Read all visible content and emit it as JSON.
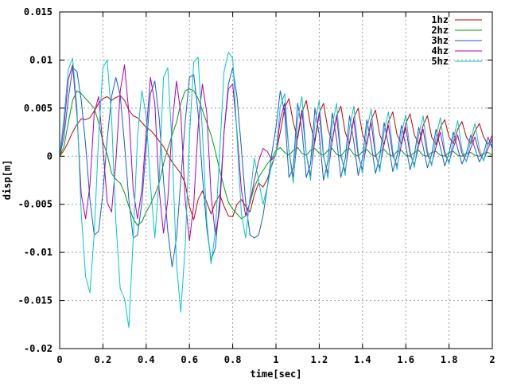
{
  "chart_data": {
    "type": "line",
    "title": "",
    "xlabel": "time[sec]",
    "ylabel": "disp[m]",
    "xlim": [
      0,
      2
    ],
    "ylim": [
      -0.02,
      0.015
    ],
    "x_ticks": [
      0,
      0.2,
      0.4,
      0.6,
      0.8,
      1,
      1.2,
      1.4,
      1.6,
      1.8,
      2
    ],
    "x_tick_labels": [
      "0",
      "0.2",
      "0.4",
      "0.6",
      "0.8",
      "1",
      "1.2",
      "1.4",
      "1.6",
      "1.8",
      "2"
    ],
    "y_ticks": [
      -0.02,
      -0.015,
      -0.01,
      -0.005,
      0,
      0.005,
      0.01,
      0.015
    ],
    "y_tick_labels": [
      "-0.02",
      "-0.015",
      "-0.01",
      "-0.005",
      "0",
      "0.005",
      "0.01",
      "0.015"
    ],
    "grid": true,
    "legend_position": "top-right",
    "x": [
      0,
      0.02,
      0.04,
      0.06,
      0.08,
      0.1,
      0.12,
      0.14,
      0.16,
      0.18,
      0.2,
      0.22,
      0.24,
      0.26,
      0.28,
      0.3,
      0.32,
      0.34,
      0.36,
      0.38,
      0.4,
      0.42,
      0.44,
      0.46,
      0.48,
      0.5,
      0.52,
      0.54,
      0.56,
      0.58,
      0.6,
      0.62,
      0.64,
      0.66,
      0.68,
      0.7,
      0.72,
      0.74,
      0.76,
      0.78,
      0.8,
      0.82,
      0.84,
      0.86,
      0.88,
      0.9,
      0.92,
      0.94,
      0.96,
      0.98,
      1,
      1.02,
      1.04,
      1.06,
      1.08,
      1.1,
      1.12,
      1.14,
      1.16,
      1.18,
      1.2,
      1.22,
      1.24,
      1.26,
      1.28,
      1.3,
      1.32,
      1.34,
      1.36,
      1.38,
      1.4,
      1.42,
      1.44,
      1.46,
      1.48,
      1.5,
      1.52,
      1.54,
      1.56,
      1.58,
      1.6,
      1.62,
      1.64,
      1.66,
      1.68,
      1.7,
      1.72,
      1.74,
      1.76,
      1.78,
      1.8,
      1.82,
      1.84,
      1.86,
      1.88,
      1.9,
      1.92,
      1.94,
      1.96,
      1.98,
      2
    ],
    "series": [
      {
        "name": "1hz",
        "color": "#cc0000",
        "values": [
          0,
          0.0006,
          0.0015,
          0.0025,
          0.0033,
          0.0039,
          0.0038,
          0.004,
          0.0047,
          0.0055,
          0.006,
          0.0062,
          0.0058,
          0.0061,
          0.0063,
          0.0058,
          0.0048,
          0.0042,
          0.004,
          0.0035,
          0.003,
          0.0027,
          0.0022,
          0.0016,
          0.001,
          0.0002,
          -0.0006,
          -0.0012,
          -0.0018,
          -0.0028,
          -0.0052,
          -0.0066,
          -0.0045,
          -0.0036,
          -0.0048,
          -0.006,
          -0.0048,
          -0.004,
          -0.0052,
          -0.0062,
          -0.0063,
          -0.005,
          -0.0045,
          -0.0052,
          -0.0058,
          -0.004,
          -0.0028,
          -0.0032,
          -0.0024,
          -0.001,
          0.0003,
          0.0025,
          0.005,
          0.006,
          0.0035,
          0.0018,
          0.0045,
          0.0058,
          0.0032,
          0.0015,
          0.0045,
          0.0055,
          0.0028,
          0.0015,
          0.0042,
          0.0052,
          0.0025,
          0.0013,
          0.004,
          0.005,
          0.0023,
          0.0012,
          0.0038,
          0.0048,
          0.0022,
          0.0012,
          0.0036,
          0.0046,
          0.0022,
          0.0013,
          0.0034,
          0.0044,
          0.0022,
          0.0013,
          0.0032,
          0.0042,
          0.002,
          0.0012,
          0.003,
          0.0038,
          0.002,
          0.0013,
          0.0028,
          0.0036,
          0.002,
          0.0013,
          0.0026,
          0.0034,
          0.002,
          0.0012,
          0.0022
        ]
      },
      {
        "name": "2hz",
        "color": "#00a000",
        "values": [
          0,
          0.001,
          0.0035,
          0.0058,
          0.0068,
          0.0065,
          0.006,
          0.0055,
          0.005,
          0.0035,
          0.0015,
          0.0002,
          -0.0018,
          -0.0024,
          -0.0028,
          -0.0038,
          -0.0052,
          -0.0065,
          -0.0072,
          -0.0068,
          -0.0058,
          -0.005,
          -0.004,
          -0.0028,
          -0.0008,
          0.0008,
          0.0022,
          0.0035,
          0.0055,
          0.0068,
          0.007,
          0.0068,
          0.006,
          0.0048,
          0.0035,
          0.0022,
          0.0005,
          -0.0015,
          -0.0032,
          -0.0048,
          -0.0055,
          -0.006,
          -0.0065,
          -0.0062,
          -0.0048,
          -0.0032,
          -0.0022,
          -0.0015,
          -0.0008,
          -0.0002,
          0.0006,
          0.0009,
          0.0004,
          0.0001,
          0.0006,
          0.0009,
          0.0003,
          0.0001,
          0.0006,
          0.0008,
          0.0003,
          0.0001,
          0.0006,
          0.0008,
          0.0002,
          0,
          0.0006,
          0.0008,
          0.0002,
          0,
          0.0005,
          0.0007,
          0.0002,
          0,
          0.0005,
          0.0007,
          0.0002,
          0,
          0.0005,
          0.0006,
          0.0001,
          0,
          0.0004,
          0.0006,
          0.0001,
          0,
          0.0004,
          0.0005,
          0.0001,
          0,
          0.0004,
          0.0005,
          0.0001,
          0,
          0.0003,
          0.0004,
          0.0001,
          0,
          0.0003,
          0.0004,
          0.0001
        ]
      },
      {
        "name": "3hz",
        "color": "#1060d0",
        "values": [
          0,
          0.002,
          0.006,
          0.0092,
          0.0088,
          0.0058,
          0.0012,
          -0.0045,
          -0.0082,
          -0.0078,
          -0.0038,
          0.0018,
          0.0062,
          0.0082,
          0.0063,
          0.0012,
          -0.0045,
          -0.0085,
          -0.0082,
          -0.0048,
          0.001,
          0.0065,
          0.0078,
          0.004,
          -0.0025,
          -0.0078,
          -0.0115,
          -0.0085,
          -0.0025,
          0.0035,
          0.0082,
          0.0085,
          0.0045,
          -0.002,
          -0.0075,
          -0.0108,
          -0.0095,
          -0.0045,
          0.0025,
          0.0075,
          0.0092,
          0.0062,
          0.0008,
          -0.0048,
          -0.0082,
          -0.0085,
          -0.0082,
          -0.0062,
          -0.0032,
          0.0002,
          0.003,
          0.0068,
          0.0045,
          -0.0022,
          -0.0012,
          0.0055,
          0.0028,
          -0.0022,
          -0.0008,
          0.005,
          0.0022,
          -0.0025,
          -0.0005,
          0.0045,
          0.0018,
          -0.0022,
          -0.0003,
          0.0042,
          0.0015,
          -0.002,
          -0.0002,
          0.0038,
          0.0013,
          -0.0018,
          0,
          0.0035,
          0.0012,
          -0.0016,
          0.0001,
          0.0032,
          0.0011,
          -0.0014,
          0.0002,
          0.003,
          0.001,
          -0.0012,
          0.0002,
          0.0028,
          0.0009,
          -0.001,
          0.0003,
          0.0025,
          0.0008,
          -0.0008,
          0.0003,
          0.0022,
          0.0008,
          -0.0006,
          0.0003,
          0.002,
          0.0008
        ]
      },
      {
        "name": "4hz",
        "color": "#b000b0",
        "values": [
          0,
          0.003,
          0.008,
          0.0095,
          0.0042,
          -0.004,
          -0.0065,
          -0.003,
          0.0045,
          0.0062,
          0.001,
          -0.0048,
          -0.0058,
          -0.0005,
          0.0068,
          0.0095,
          0.0045,
          -0.0035,
          -0.0065,
          -0.0035,
          0.0025,
          0.0082,
          0.0055,
          -0.0035,
          -0.008,
          -0.0045,
          0.0032,
          0.0078,
          0.0045,
          -0.0045,
          -0.0088,
          -0.005,
          0.003,
          0.0075,
          0.0045,
          -0.004,
          -0.0082,
          -0.0055,
          0.0025,
          0.007,
          0.0075,
          0.0025,
          -0.0035,
          -0.0062,
          -0.0048,
          -0.0025,
          -0.0005,
          0.0008,
          0.0005,
          -0.0004,
          0.0002,
          0.0038,
          0.0055,
          0.0005,
          -0.0022,
          0.002,
          0.0048,
          0.0002,
          -0.002,
          0.0018,
          0.0045,
          0,
          -0.0018,
          0.0016,
          0.0042,
          0,
          -0.0016,
          0.0015,
          0.0038,
          0,
          -0.0014,
          0.0014,
          0.0035,
          0.0001,
          -0.0012,
          0.0013,
          0.0032,
          0.0001,
          -0.001,
          0.0012,
          0.003,
          0.0002,
          -0.0009,
          0.0011,
          0.0028,
          0.0002,
          -0.0008,
          0.001,
          0.0025,
          0.0002,
          -0.0006,
          0.0009,
          0.0022,
          0.0003,
          -0.0005,
          0.0008,
          0.002,
          0.0003,
          -0.0004,
          0.0008,
          0.0018
        ]
      },
      {
        "name": "5hz",
        "color": "#00c8c8",
        "values": [
          0,
          0.004,
          0.009,
          0.0102,
          0.005,
          -0.006,
          -0.0125,
          -0.0142,
          -0.008,
          0.002,
          0.0092,
          0.01,
          0.004,
          -0.0068,
          -0.0138,
          -0.0148,
          -0.0178,
          -0.0085,
          0.002,
          0.0068,
          0.0042,
          -0.003,
          -0.0085,
          -0.0025,
          0.0082,
          0.0092,
          0.001,
          -0.0112,
          -0.0162,
          -0.0095,
          0.002,
          0.0098,
          0.0103,
          0.0025,
          -0.0068,
          -0.0112,
          -0.0078,
          0.0005,
          0.0088,
          0.0108,
          0.0102,
          0.002,
          -0.006,
          -0.0085,
          -0.0042,
          -0.0002,
          -0.0025,
          -0.005,
          -0.0032,
          -0.0008,
          0.0002,
          0.0052,
          0.0065,
          0.0005,
          -0.0028,
          0.0038,
          0.0062,
          0.0002,
          -0.0025,
          0.0035,
          0.0058,
          0.0002,
          -0.0023,
          0.0032,
          0.0055,
          0.0003,
          -0.002,
          0.003,
          0.0052,
          0.0004,
          -0.0018,
          0.0028,
          0.0049,
          0.0005,
          -0.0016,
          0.0026,
          0.0046,
          0.0005,
          -0.0014,
          0.0024,
          0.0043,
          0.0006,
          -0.0012,
          0.0022,
          0.0042,
          0.0006,
          -0.001,
          0.002,
          0.004,
          0.0006,
          -0.0008,
          0.0018,
          0.0037,
          0.0007,
          -0.0006,
          0.0016,
          0.0034,
          0.0008,
          -0.0005,
          0.0014,
          0.0012
        ]
      }
    ]
  }
}
